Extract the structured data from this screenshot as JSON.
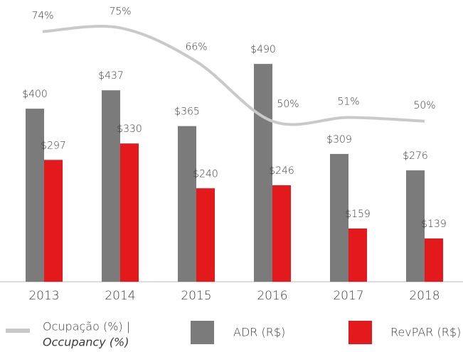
{
  "chart_data": {
    "type": "bar",
    "categories": [
      "2013",
      "2014",
      "2015",
      "2016",
      "2017",
      "2018"
    ],
    "series": [
      {
        "name": "ADR (R$)",
        "color": "#7b7b7b",
        "values": [
          400,
          437,
          365,
          490,
          309,
          276
        ],
        "value_labels": [
          "$400",
          "$437",
          "$365",
          "$490",
          "$309",
          "$276"
        ]
      },
      {
        "name": "RevPAR (R$)",
        "color": "#e3191b",
        "values": [
          297,
          330,
          240,
          246,
          159,
          139
        ],
        "value_labels": [
          "$297",
          "$330",
          "$240",
          "$246",
          "$159",
          "$139"
        ]
      },
      {
        "name": "Ocupação (%) |",
        "name_italic": "Occupancy (%)",
        "type": "line",
        "axis": "y2",
        "color": "#c9c9c9",
        "values": [
          74,
          75,
          66,
          50,
          51,
          50
        ],
        "value_labels": [
          "74%",
          "75%",
          "66%",
          "50%",
          "51%",
          "50%"
        ]
      }
    ],
    "ylim": [
      52,
      600
    ],
    "y2lim": [
      7,
      80
    ]
  }
}
